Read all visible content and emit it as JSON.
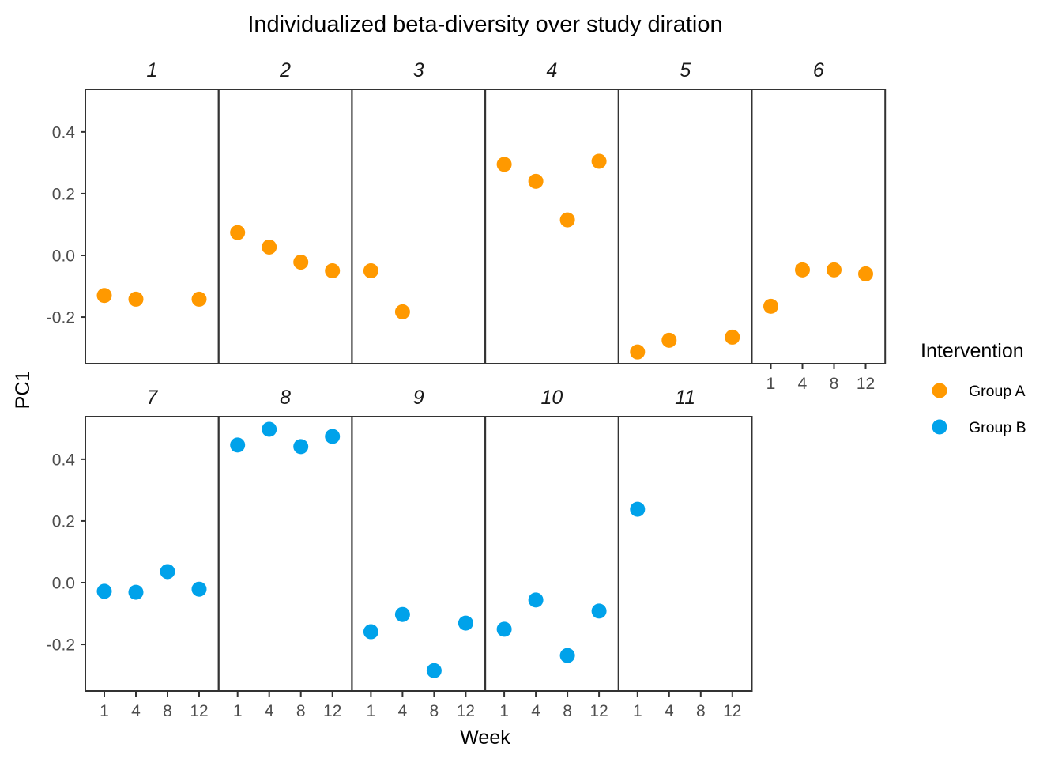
{
  "chart_data": {
    "type": "scatter",
    "title": "Individualized beta-diversity over study diration",
    "xlabel": "Week",
    "ylabel": "PC1",
    "x_categories": [
      "1",
      "4",
      "8",
      "12"
    ],
    "ylim": [
      -0.351,
      0.538
    ],
    "y_ticks": [
      -0.2,
      0.0,
      0.2,
      0.4
    ],
    "y_tick_labels": [
      "-0.2",
      "0.0",
      "0.2",
      "0.4"
    ],
    "grid": false,
    "facet_layout": {
      "rows": 2,
      "cols": 6
    },
    "legend": {
      "title": "Intervention",
      "position": "right",
      "entries": [
        {
          "label": "Group A",
          "color": "#FF9900"
        },
        {
          "label": "Group B",
          "color": "#00A2EA"
        }
      ]
    },
    "panels": [
      {
        "label": "1",
        "group": "Group A",
        "points": [
          {
            "week": "1",
            "pc1": -0.13
          },
          {
            "week": "4",
            "pc1": -0.142
          },
          {
            "week": "12",
            "pc1": -0.142
          }
        ]
      },
      {
        "label": "2",
        "group": "Group A",
        "points": [
          {
            "week": "1",
            "pc1": 0.074
          },
          {
            "week": "4",
            "pc1": 0.027
          },
          {
            "week": "8",
            "pc1": -0.022
          },
          {
            "week": "12",
            "pc1": -0.05
          }
        ]
      },
      {
        "label": "3",
        "group": "Group A",
        "points": [
          {
            "week": "1",
            "pc1": -0.05
          },
          {
            "week": "4",
            "pc1": -0.183
          }
        ]
      },
      {
        "label": "4",
        "group": "Group A",
        "points": [
          {
            "week": "1",
            "pc1": 0.295
          },
          {
            "week": "4",
            "pc1": 0.24
          },
          {
            "week": "8",
            "pc1": 0.115
          },
          {
            "week": "12",
            "pc1": 0.305
          }
        ]
      },
      {
        "label": "5",
        "group": "Group A",
        "points": [
          {
            "week": "1",
            "pc1": -0.313
          },
          {
            "week": "4",
            "pc1": -0.275
          },
          {
            "week": "12",
            "pc1": -0.265
          }
        ]
      },
      {
        "label": "6",
        "group": "Group A",
        "points": [
          {
            "week": "1",
            "pc1": -0.165
          },
          {
            "week": "4",
            "pc1": -0.047
          },
          {
            "week": "8",
            "pc1": -0.047
          },
          {
            "week": "12",
            "pc1": -0.06
          }
        ]
      },
      {
        "label": "7",
        "group": "Group B",
        "points": [
          {
            "week": "1",
            "pc1": -0.028
          },
          {
            "week": "4",
            "pc1": -0.031
          },
          {
            "week": "8",
            "pc1": 0.036
          },
          {
            "week": "12",
            "pc1": -0.021
          }
        ]
      },
      {
        "label": "8",
        "group": "Group B",
        "points": [
          {
            "week": "1",
            "pc1": 0.446
          },
          {
            "week": "4",
            "pc1": 0.497
          },
          {
            "week": "8",
            "pc1": 0.441
          },
          {
            "week": "12",
            "pc1": 0.474
          }
        ]
      },
      {
        "label": "9",
        "group": "Group B",
        "points": [
          {
            "week": "1",
            "pc1": -0.159
          },
          {
            "week": "4",
            "pc1": -0.103
          },
          {
            "week": "8",
            "pc1": -0.285
          },
          {
            "week": "12",
            "pc1": -0.131
          }
        ]
      },
      {
        "label": "10",
        "group": "Group B",
        "points": [
          {
            "week": "1",
            "pc1": -0.151
          },
          {
            "week": "4",
            "pc1": -0.056
          },
          {
            "week": "8",
            "pc1": -0.236
          },
          {
            "week": "12",
            "pc1": -0.092
          }
        ]
      },
      {
        "label": "11",
        "group": "Group B",
        "points": [
          {
            "week": "1",
            "pc1": 0.238
          }
        ]
      }
    ]
  }
}
